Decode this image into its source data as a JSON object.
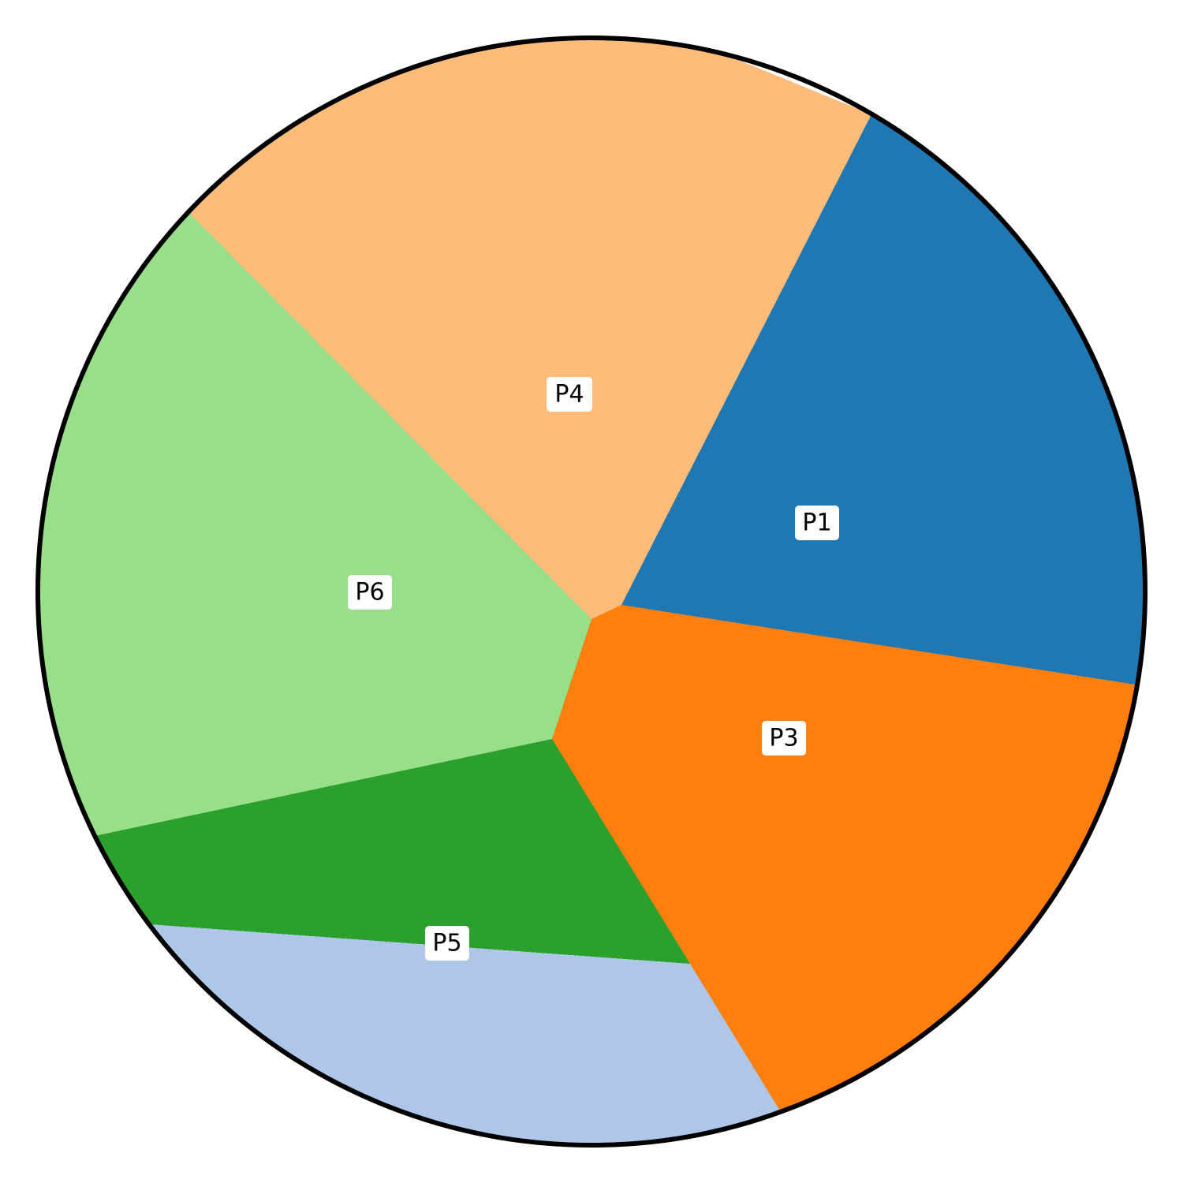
{
  "regions": [
    {
      "key": "p1",
      "label": "P1",
      "color": "#1f77b4"
    },
    {
      "key": "p3",
      "label": "P3",
      "color": "#ff7f0e"
    },
    {
      "key": "p4",
      "label": "P4",
      "color": "#ffbb78"
    },
    {
      "key": "p5",
      "label": "P5",
      "color": "#2ca02c"
    },
    {
      "key": "p6",
      "label": "P6",
      "color": "#98df8a"
    },
    {
      "key": "p2",
      "label": "",
      "color": "#aec7e8"
    }
  ],
  "outline_color": "#000000"
}
